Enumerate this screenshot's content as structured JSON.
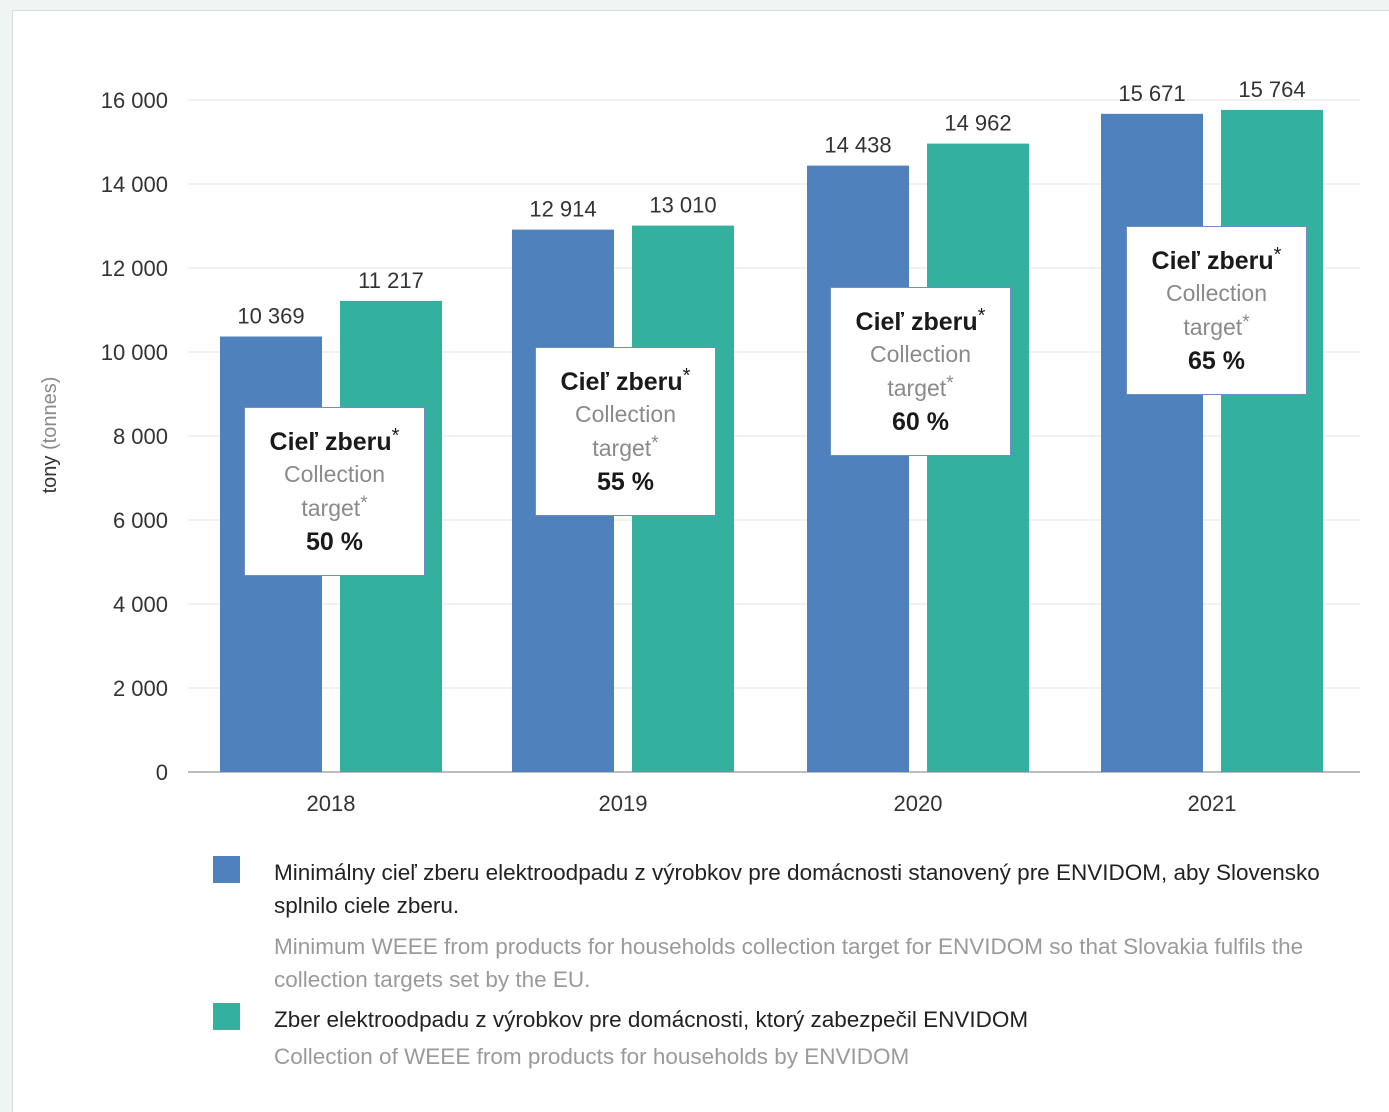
{
  "chart_data": {
    "type": "bar",
    "categories": [
      "2018",
      "2019",
      "2020",
      "2021"
    ],
    "series": [
      {
        "name": "Minimálny cieľ zberu elektroodpadu z výrobkov pre domácnosti stanovený pre ENVIDOM, aby Slovensko splnilo ciele zberu.",
        "name_en": "Minimum WEEE from products for households collection target for ENVIDOM so that Slovakia fulfils the collection targets set by the EU.",
        "values": [
          10369,
          12914,
          14438,
          15671
        ],
        "labels": [
          "10 369",
          "12 914",
          "14 438",
          "15 671"
        ],
        "color": "#4f81bd"
      },
      {
        "name": "Zber elektroodpadu z výrobkov pre domácnosti, ktorý zabezpečil ENVIDOM",
        "name_en": "Collection of WEEE from products for households by ENVIDOM",
        "values": [
          11217,
          13010,
          14962,
          15764
        ],
        "labels": [
          "11 217",
          "13 010",
          "14 962",
          "15 764"
        ],
        "color": "#33b09e"
      }
    ],
    "ylabel": "tony",
    "ylabel_en": "(tonnes)",
    "ylim": [
      0,
      16000
    ],
    "yticks": [
      0,
      2000,
      4000,
      6000,
      8000,
      10000,
      12000,
      14000,
      16000
    ],
    "ytick_labels": [
      "0",
      "2 000",
      "4 000",
      "6 000",
      "8 000",
      "10 000",
      "12 000",
      "14 000",
      "16 000"
    ],
    "grid": true,
    "legend_position": "bottom",
    "target_boxes": [
      {
        "sk": "Cieľ zberu",
        "en": "Collection target",
        "star": "*",
        "pct": "50 %"
      },
      {
        "sk": "Cieľ zberu",
        "en": "Collection target",
        "star": "*",
        "pct": "55 %"
      },
      {
        "sk": "Cieľ zberu",
        "en": "Collection target",
        "star": "*",
        "pct": "60 %"
      },
      {
        "sk": "Cieľ zberu",
        "en": "Collection target",
        "star": "*",
        "pct": "65 %"
      }
    ]
  }
}
